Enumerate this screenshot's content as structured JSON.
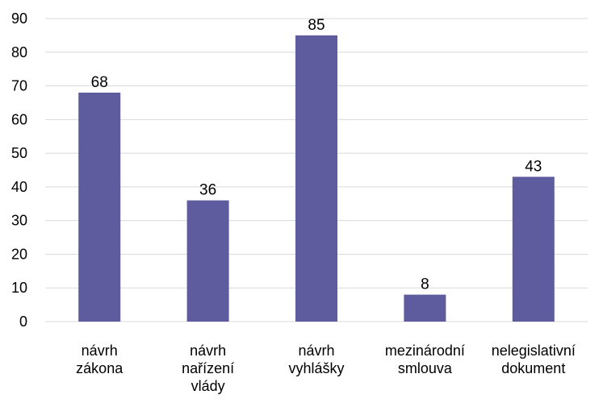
{
  "chart_data": {
    "type": "bar",
    "categories": [
      [
        "návrh",
        "zákona"
      ],
      [
        "návrh",
        "nařízení",
        "vlády"
      ],
      [
        "návrh",
        "vyhlášky"
      ],
      [
        "mezinárodní",
        "smlouva"
      ],
      [
        "nelegislativní",
        "dokument"
      ]
    ],
    "values": [
      68,
      36,
      85,
      8,
      43
    ],
    "title": "",
    "xlabel": "",
    "ylabel": "",
    "ylim": [
      0,
      90
    ],
    "yticks": [
      0,
      10,
      20,
      30,
      40,
      50,
      60,
      70,
      80,
      90
    ],
    "grid": true,
    "data_labels": true,
    "colors": {
      "bar": "#5f5b9f",
      "grid": "#d9d9d9",
      "axis": "#d9d9d9",
      "text": "#000000"
    }
  }
}
